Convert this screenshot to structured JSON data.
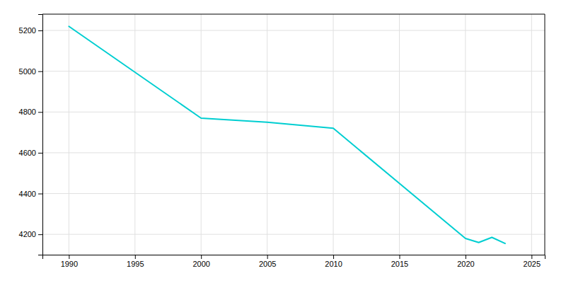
{
  "chart_data": {
    "type": "line",
    "x": [
      1990,
      2000,
      2005,
      2010,
      2020,
      2021,
      2022,
      2023
    ],
    "values": [
      5220,
      4770,
      4750,
      4720,
      4180,
      4160,
      4185,
      4155
    ],
    "color": "#00CED1",
    "xlim": [
      1988,
      2026
    ],
    "ylim": [
      4100,
      5280
    ],
    "xticks": [
      1990,
      1995,
      2000,
      2005,
      2010,
      2015,
      2020,
      2025
    ],
    "yticks": [
      4200,
      4400,
      4600,
      4800,
      5000,
      5200
    ],
    "grid": true
  }
}
